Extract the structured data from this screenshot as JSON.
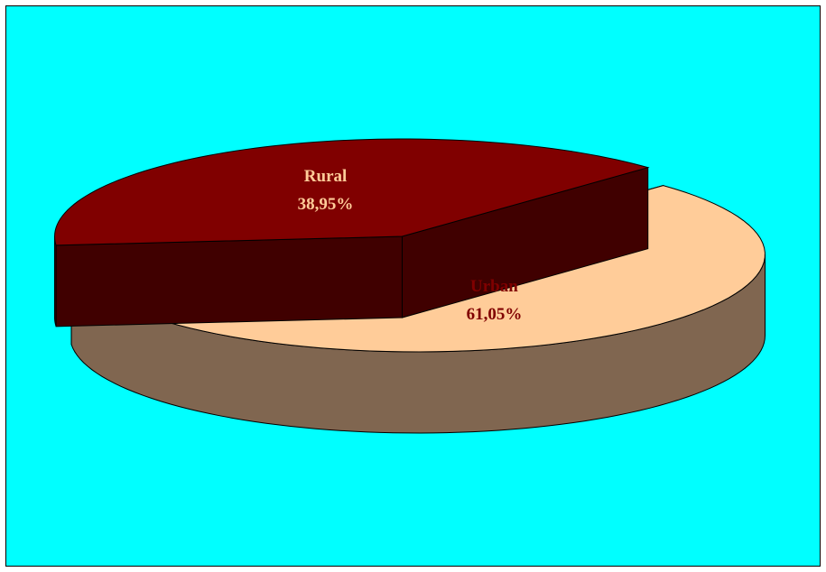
{
  "chart_data": {
    "type": "pie",
    "style": "3d-exploded",
    "title": "",
    "slices": [
      {
        "label": "Urban",
        "value_label": "61,05%",
        "value": 61.05,
        "top_color": "#FFCC99",
        "side_color": "#806650",
        "text_color": "#800000"
      },
      {
        "label": "Rural",
        "value_label": "38,95%",
        "value": 38.95,
        "top_color": "#800000",
        "side_color": "#400000",
        "text_color": "#FFCC99"
      }
    ],
    "background_color": "#00FFFF",
    "legend": "none"
  }
}
